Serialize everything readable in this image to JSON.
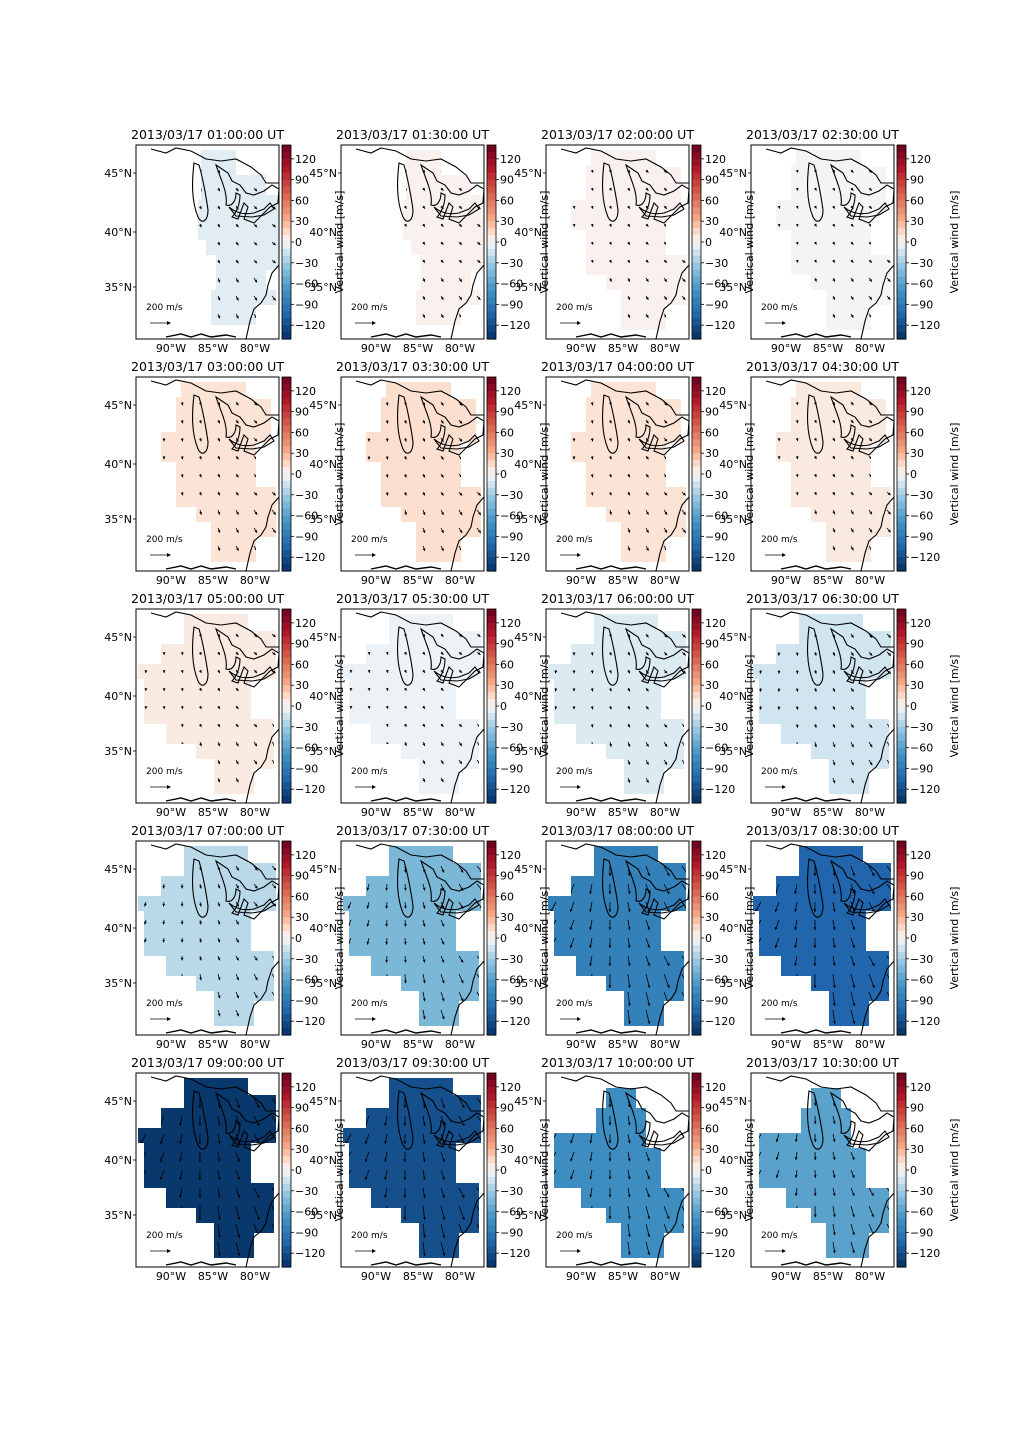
{
  "figure": {
    "colorbar": {
      "label": "Vertical wind [m/s]",
      "ticks": [
        "120",
        "90",
        "60",
        "30",
        "0",
        "−30",
        "−60",
        "−90",
        "−120"
      ],
      "range": [
        -140,
        140
      ],
      "colormap": "RdBu_r"
    },
    "lat_labels": [
      "45°N",
      "40°N",
      "35°N"
    ],
    "lon_labels": [
      "90°W",
      "85°W",
      "80°W"
    ],
    "reference_arrow_label": "200 m/s",
    "panels": [
      {
        "title": "2013/03/17 01:00:00 UT",
        "mean_vertical_wind": -8,
        "region": "south"
      },
      {
        "title": "2013/03/17 01:30:00 UT",
        "mean_vertical_wind": 3,
        "region": "south"
      },
      {
        "title": "2013/03/17 02:00:00 UT",
        "mean_vertical_wind": 3,
        "region": "full"
      },
      {
        "title": "2013/03/17 02:30:00 UT",
        "mean_vertical_wind": -2,
        "region": "full"
      },
      {
        "title": "2013/03/17 03:00:00 UT",
        "mean_vertical_wind": 10,
        "region": "full"
      },
      {
        "title": "2013/03/17 03:30:00 UT",
        "mean_vertical_wind": 12,
        "region": "full"
      },
      {
        "title": "2013/03/17 04:00:00 UT",
        "mean_vertical_wind": 10,
        "region": "full"
      },
      {
        "title": "2013/03/17 04:30:00 UT",
        "mean_vertical_wind": 7,
        "region": "full"
      },
      {
        "title": "2013/03/17 05:00:00 UT",
        "mean_vertical_wind": 6,
        "region": "wide"
      },
      {
        "title": "2013/03/17 05:30:00 UT",
        "mean_vertical_wind": -4,
        "region": "wide"
      },
      {
        "title": "2013/03/17 06:00:00 UT",
        "mean_vertical_wind": -10,
        "region": "wide"
      },
      {
        "title": "2013/03/17 06:30:00 UT",
        "mean_vertical_wind": -14,
        "region": "wide"
      },
      {
        "title": "2013/03/17 07:00:00 UT",
        "mean_vertical_wind": -22,
        "region": "wide"
      },
      {
        "title": "2013/03/17 07:30:00 UT",
        "mean_vertical_wind": -45,
        "region": "wide"
      },
      {
        "title": "2013/03/17 08:00:00 UT",
        "mean_vertical_wind": -85,
        "region": "wide"
      },
      {
        "title": "2013/03/17 08:30:00 UT",
        "mean_vertical_wind": -105,
        "region": "wide"
      },
      {
        "title": "2013/03/17 09:00:00 UT",
        "mean_vertical_wind": -135,
        "region": "wide"
      },
      {
        "title": "2013/03/17 09:30:00 UT",
        "mean_vertical_wind": -120,
        "region": "wide"
      },
      {
        "title": "2013/03/17 10:00:00 UT",
        "mean_vertical_wind": -75,
        "region": "mid"
      },
      {
        "title": "2013/03/17 10:30:00 UT",
        "mean_vertical_wind": -60,
        "region": "mid"
      }
    ]
  }
}
